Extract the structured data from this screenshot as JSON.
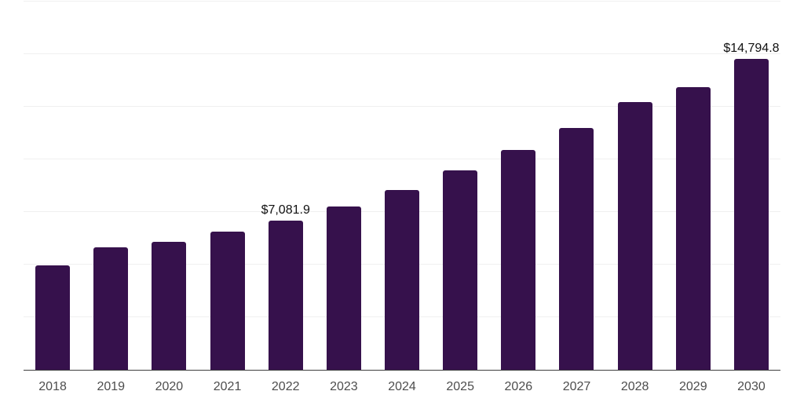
{
  "page": {
    "background": "#ffffff"
  },
  "chart_data": {
    "type": "bar",
    "title": "",
    "xlabel": "",
    "ylabel": "",
    "categories": [
      "2018",
      "2019",
      "2020",
      "2021",
      "2022",
      "2023",
      "2024",
      "2025",
      "2026",
      "2027",
      "2028",
      "2029",
      "2030"
    ],
    "values": [
      4970,
      5810,
      6100,
      6560,
      7081.9,
      7780,
      8530,
      9460,
      10430,
      11480,
      12710,
      13420,
      14794.8
    ],
    "bar_labels": [
      "",
      "",
      "",
      "",
      "$7,081.9",
      "",
      "",
      "",
      "",
      "",
      "",
      "",
      "$14,794.8"
    ],
    "ylim": [
      0,
      17500
    ],
    "grid_step": 2500,
    "grid": true,
    "legend_position": "none",
    "y_tick_labels_visible": false,
    "style": {
      "bar_color": "#36114c",
      "grid_color": "#f0f0f0",
      "axis_color": "#3f3f3f",
      "tick_label_color": "#4d4d4d",
      "data_label_color": "#111111"
    }
  }
}
